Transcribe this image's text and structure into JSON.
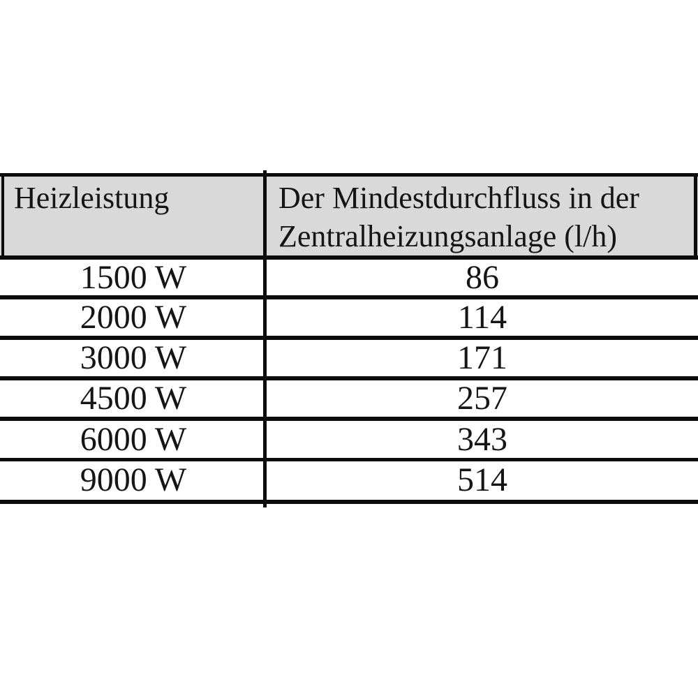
{
  "table": {
    "header": {
      "col1": "Heizleistung",
      "col2_line1": "Der Mindestdurchfluss in der",
      "col2_line2": "Zentralheizungsanlage (l/h)"
    },
    "rows": [
      {
        "power": "1500 W",
        "flow": "86"
      },
      {
        "power": "2000 W",
        "flow": "114"
      },
      {
        "power": "3000 W",
        "flow": "171"
      },
      {
        "power": "4500 W",
        "flow": "257"
      },
      {
        "power": "6000 W",
        "flow": "343"
      },
      {
        "power": "9000 W",
        "flow": "514"
      }
    ],
    "colors": {
      "header_bg": "#d9d9d9",
      "border": "#0c0c0c",
      "text": "#151515",
      "page_bg": "#ffffff"
    }
  },
  "chart_data": {
    "type": "table",
    "title": "",
    "columns": [
      "Heizleistung",
      "Der Mindestdurchfluss in der Zentralheizungsanlage (l/h)"
    ],
    "rows": [
      [
        "1500 W",
        86
      ],
      [
        "2000 W",
        114
      ],
      [
        "3000 W",
        171
      ],
      [
        "4500 W",
        257
      ],
      [
        "6000 W",
        343
      ],
      [
        "9000 W",
        514
      ]
    ]
  }
}
